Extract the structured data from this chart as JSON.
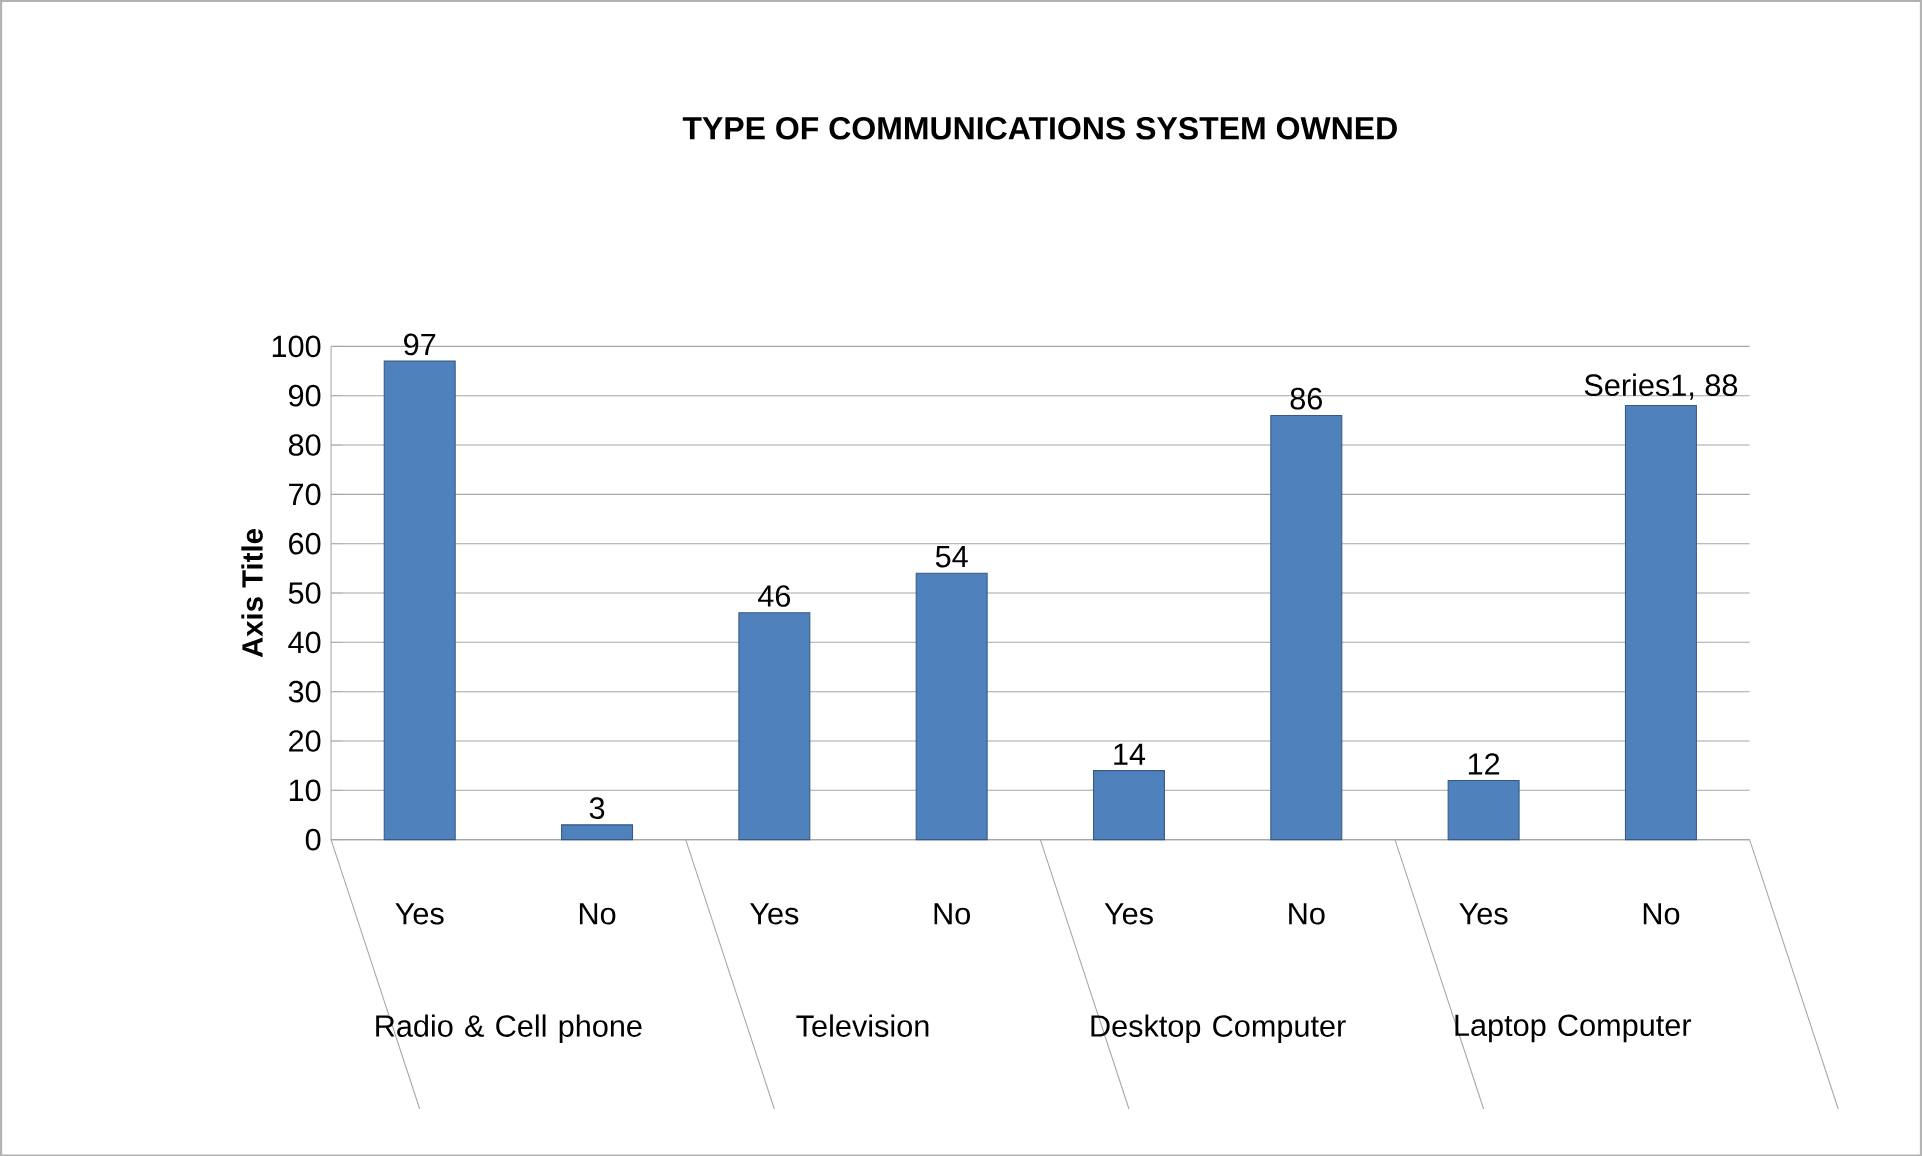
{
  "chart_data": {
    "type": "bar",
    "title": "TYPE OF COMMUNICATIONS SYSTEM OWNED",
    "ylabel": "Axis Title",
    "categories": [
      "Yes",
      "No",
      "Yes",
      "No",
      "Yes",
      "No",
      "Yes",
      "No"
    ],
    "values": [
      97,
      3,
      46,
      54,
      14,
      86,
      12,
      88
    ],
    "value_labels": [
      "97",
      "3",
      "46",
      "54",
      "14",
      "86",
      "12",
      "Series1, 88"
    ],
    "color": "#4f81bd",
    "ylim": [
      0,
      100
    ],
    "yticks": [
      0,
      10,
      20,
      30,
      40,
      50,
      60,
      70,
      80,
      90,
      100
    ],
    "grid": "y",
    "annotations": [
      "Radio & Cell phone",
      "Television",
      "Desktop Computer",
      "Laptop Computer"
    ]
  }
}
